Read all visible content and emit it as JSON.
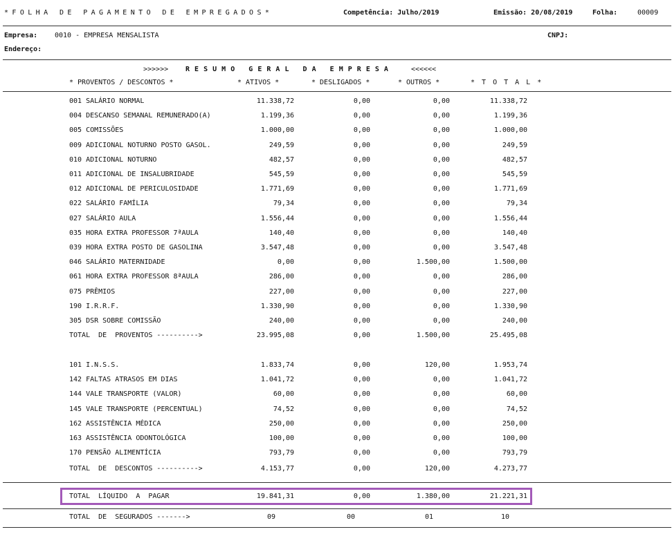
{
  "header": {
    "title": "*FOLHA DE PAGAMENTO DE EMPREGADOS*",
    "competencia": "Competência: Julho/2019",
    "emissao": "Emissão: 20/08/2019",
    "folha_label": "Folha:",
    "folha_value": "00009"
  },
  "company": {
    "empresa_label": "Empresa:",
    "empresa_value": "0010 - EMPRESA MENSALISTA",
    "cnpj_label": "CNPJ:",
    "endereco_label": "Endereço:"
  },
  "summary": {
    "title_left": ">>>>>>",
    "title": "R E S U M O   G E R A L   D A   E M P R E S A",
    "title_right": "<<<<<<",
    "columns": [
      "* PROVENTOS / DESCONTOS *",
      "* ATIVOS *",
      "* DESLIGADOS *",
      "* OUTROS *",
      "* T O T A L *"
    ]
  },
  "proventos": [
    [
      "001 SALÁRIO NORMAL",
      "11.338,72",
      "0,00",
      "0,00",
      "11.338,72"
    ],
    [
      "004 DESCANSO SEMANAL REMUNERADO(A)",
      "1.199,36",
      "0,00",
      "0,00",
      "1.199,36"
    ],
    [
      "005 COMISSÕES",
      "1.000,00",
      "0,00",
      "0,00",
      "1.000,00"
    ],
    [
      "009 ADICIONAL NOTURNO POSTO GASOL.",
      "249,59",
      "0,00",
      "0,00",
      "249,59"
    ],
    [
      "010 ADICIONAL NOTURNO",
      "482,57",
      "0,00",
      "0,00",
      "482,57"
    ],
    [
      "011 ADICIONAL DE INSALUBRIDADE",
      "545,59",
      "0,00",
      "0,00",
      "545,59"
    ],
    [
      "012 ADICIONAL DE PERICULOSIDADE",
      "1.771,69",
      "0,00",
      "0,00",
      "1.771,69"
    ],
    [
      "022 SALÁRIO FAMÍLIA",
      "79,34",
      "0,00",
      "0,00",
      "79,34"
    ],
    [
      "027 SALÁRIO AULA",
      "1.556,44",
      "0,00",
      "0,00",
      "1.556,44"
    ],
    [
      "035 HORA EXTRA PROFESSOR 7ªAULA",
      "140,40",
      "0,00",
      "0,00",
      "140,40"
    ],
    [
      "039 HORA EXTRA POSTO DE GASOLINA",
      "3.547,48",
      "0,00",
      "0,00",
      "3.547,48"
    ],
    [
      "046 SALÁRIO MATERNIDADE",
      "0,00",
      "0,00",
      "1.500,00",
      "1.500,00"
    ],
    [
      "061 HORA EXTRA PROFESSOR 8ªAULA",
      "286,00",
      "0,00",
      "0,00",
      "286,00"
    ],
    [
      "075 PRÊMIOS",
      "227,00",
      "0,00",
      "0,00",
      "227,00"
    ],
    [
      "190 I.R.R.F.",
      "1.330,90",
      "0,00",
      "0,00",
      "1.330,90"
    ],
    [
      "305 DSR SOBRE COMISSÃO",
      "240,00",
      "0,00",
      "0,00",
      "240,00"
    ]
  ],
  "total_proventos": [
    "TOTAL  DE  PROVENTOS ---------->",
    "23.995,08",
    "0,00",
    "1.500,00",
    "25.495,08"
  ],
  "descontos": [
    [
      "101 I.N.S.S.",
      "1.833,74",
      "0,00",
      "120,00",
      "1.953,74"
    ],
    [
      "142 FALTAS ATRASOS EM DIAS",
      "1.041,72",
      "0,00",
      "0,00",
      "1.041,72"
    ],
    [
      "144 VALE TRANSPORTE (VALOR)",
      "60,00",
      "0,00",
      "0,00",
      "60,00"
    ],
    [
      "145 VALE TRANSPORTE (PERCENTUAL)",
      "74,52",
      "0,00",
      "0,00",
      "74,52"
    ],
    [
      "162 ASSISTÊNCIA MÉDICA",
      "250,00",
      "0,00",
      "0,00",
      "250,00"
    ],
    [
      "163 ASSISTÊNCIA ODONTOLÓGICA",
      "100,00",
      "0,00",
      "0,00",
      "100,00"
    ],
    [
      "170 PENSÃO ALIMENTÍCIA",
      "793,79",
      "0,00",
      "0,00",
      "793,79"
    ]
  ],
  "total_descontos": [
    "TOTAL  DE  DESCONTOS ---------->",
    "4.153,77",
    "0,00",
    "120,00",
    "4.273,77"
  ],
  "total_liquido": [
    "TOTAL  LÍQUIDO  A  PAGAR",
    "19.841,31",
    "0,00",
    "1.380,00",
    "21.221,31"
  ],
  "total_segurados": [
    "TOTAL  DE  SEGURADOS ------->",
    "09",
    "00",
    "01",
    "10"
  ],
  "colors": {
    "highlight": "#a35ab8"
  }
}
